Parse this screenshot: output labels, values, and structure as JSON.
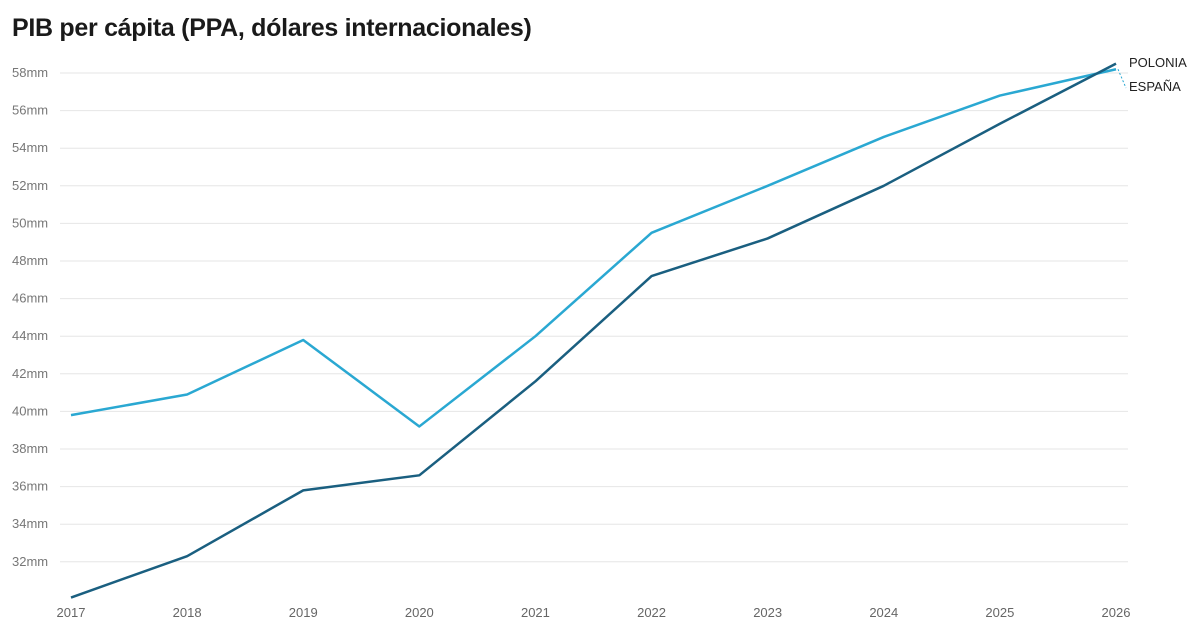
{
  "chart_data": {
    "type": "line",
    "title": "PIB per cápita (PPA, dólares internacionales)",
    "xlabel": "",
    "ylabel": "",
    "x": [
      2017,
      2018,
      2019,
      2020,
      2021,
      2022,
      2023,
      2024,
      2025,
      2026
    ],
    "x_tick_labels": [
      "2017",
      "2018",
      "2019",
      "2020",
      "2021",
      "2022",
      "2023",
      "2024",
      "2025",
      "2026"
    ],
    "ylim": [
      30,
      59
    ],
    "y_ticks": [
      32,
      34,
      36,
      38,
      40,
      42,
      44,
      46,
      48,
      50,
      52,
      54,
      56,
      58
    ],
    "y_tick_suffix": "mm",
    "grid": true,
    "legend": "end-of-line labels, right",
    "series": [
      {
        "name": "POLONIA",
        "color": "#1a5f80",
        "values": [
          30.1,
          32.3,
          35.8,
          36.6,
          41.6,
          47.2,
          49.2,
          52.0,
          55.3,
          58.5
        ]
      },
      {
        "name": "ESPAÑA",
        "color": "#2aa8d2",
        "values": [
          39.8,
          40.9,
          43.8,
          39.2,
          44.0,
          49.5,
          52.0,
          54.6,
          56.8,
          58.2
        ]
      }
    ]
  }
}
